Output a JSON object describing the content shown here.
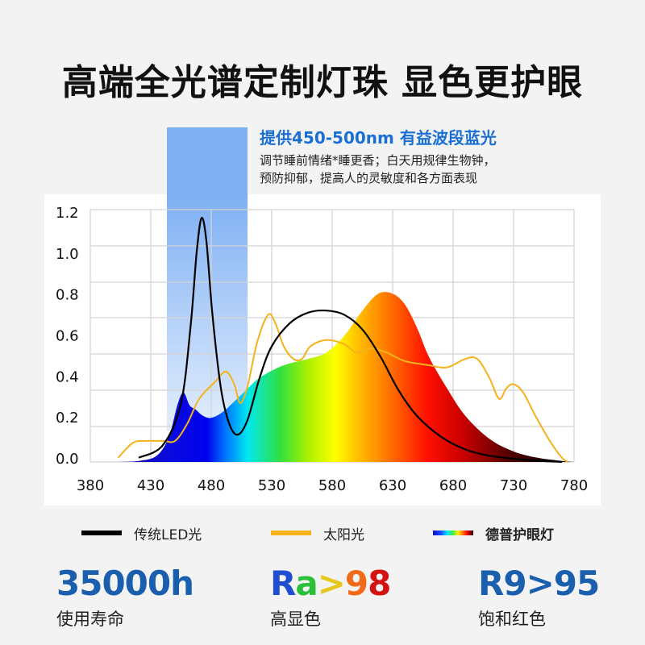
{
  "header": {
    "title": "高端全光谱定制灯珠 显色更护眼"
  },
  "callout": {
    "headline": "提供450-500nm 有益波段蓝光",
    "line1": "调节睡前情绪*睡更香；白天用规律生物钟，",
    "line2": "预防抑郁，提高人的灵敏度和各方面表现",
    "band_color": "#7fb0f4"
  },
  "legend": {
    "items": [
      {
        "label": "传统LED光",
        "color": "#000000",
        "swatch": "solid"
      },
      {
        "label": "太阳光",
        "color": "#f5b21b",
        "swatch": "solid"
      },
      {
        "label": "德普护眼灯",
        "color": "spectrum",
        "swatch": "gradient"
      }
    ]
  },
  "stats": [
    {
      "value": "35000h",
      "label": "使用寿命",
      "color": "#1a5fae"
    },
    {
      "value": "Ra>98",
      "label": "高显色",
      "color": "rainbow",
      "chars": [
        {
          "c": "R",
          "color": "#1f4fd0"
        },
        {
          "c": "a",
          "color": "#2bbf3a"
        },
        {
          "c": ">",
          "color": "#e5c81a"
        },
        {
          "c": "9",
          "color": "#f06a1a"
        },
        {
          "c": "8",
          "color": "#d31212"
        }
      ]
    },
    {
      "value": "R9>95",
      "label": "饱和红色",
      "color": "#1a5fae"
    }
  ],
  "chart_data": {
    "type": "line",
    "title": "",
    "xlabel": "",
    "ylabel": "",
    "x_ticks": [
      380,
      430,
      480,
      530,
      580,
      630,
      680,
      730,
      780
    ],
    "y_ticks": [
      "0.0",
      "0.2",
      "0.4",
      "0.6",
      "0.8",
      "1.0",
      "1.2"
    ],
    "xlim": [
      380,
      780
    ],
    "ylim": [
      0,
      1.2
    ],
    "grid": true,
    "highlight_band": {
      "from_nm": 443,
      "to_nm": 509,
      "label": "提供450-500nm 有益波段蓝光"
    },
    "series": [
      {
        "name": "传统LED光",
        "color": "#000000",
        "points": [
          [
            420,
            0.02
          ],
          [
            440,
            0.08
          ],
          [
            455,
            0.28
          ],
          [
            463,
            0.65
          ],
          [
            468,
            1.0
          ],
          [
            472,
            1.16
          ],
          [
            476,
            1.05
          ],
          [
            481,
            0.7
          ],
          [
            488,
            0.35
          ],
          [
            495,
            0.18
          ],
          [
            502,
            0.13
          ],
          [
            510,
            0.2
          ],
          [
            520,
            0.4
          ],
          [
            530,
            0.55
          ],
          [
            545,
            0.66
          ],
          [
            560,
            0.71
          ],
          [
            575,
            0.72
          ],
          [
            590,
            0.7
          ],
          [
            605,
            0.63
          ],
          [
            620,
            0.5
          ],
          [
            635,
            0.34
          ],
          [
            650,
            0.22
          ],
          [
            670,
            0.12
          ],
          [
            690,
            0.06
          ],
          [
            710,
            0.03
          ],
          [
            740,
            0.01
          ],
          [
            770,
            0.0
          ]
        ]
      },
      {
        "name": "太阳光",
        "color": "#f5b21b",
        "points": [
          [
            403,
            0.02
          ],
          [
            415,
            0.09
          ],
          [
            425,
            0.1
          ],
          [
            440,
            0.1
          ],
          [
            450,
            0.1
          ],
          [
            460,
            0.18
          ],
          [
            470,
            0.3
          ],
          [
            483,
            0.38
          ],
          [
            492,
            0.43
          ],
          [
            499,
            0.37
          ],
          [
            504,
            0.28
          ],
          [
            510,
            0.36
          ],
          [
            518,
            0.57
          ],
          [
            527,
            0.7
          ],
          [
            533,
            0.66
          ],
          [
            540,
            0.55
          ],
          [
            548,
            0.49
          ],
          [
            555,
            0.49
          ],
          [
            562,
            0.55
          ],
          [
            575,
            0.58
          ],
          [
            590,
            0.56
          ],
          [
            600,
            0.52
          ],
          [
            612,
            0.54
          ],
          [
            625,
            0.52
          ],
          [
            640,
            0.48
          ],
          [
            660,
            0.46
          ],
          [
            675,
            0.45
          ],
          [
            690,
            0.49
          ],
          [
            700,
            0.49
          ],
          [
            710,
            0.4
          ],
          [
            718,
            0.3
          ],
          [
            724,
            0.35
          ],
          [
            730,
            0.37
          ],
          [
            738,
            0.33
          ],
          [
            748,
            0.22
          ],
          [
            760,
            0.1
          ],
          [
            770,
            0.02
          ],
          [
            775,
            0.0
          ]
        ]
      },
      {
        "name": "德普护眼灯",
        "color": "spectrum-gradient",
        "fill": true,
        "points": [
          [
            400,
            0.0
          ],
          [
            420,
            0.005
          ],
          [
            435,
            0.03
          ],
          [
            445,
            0.12
          ],
          [
            452,
            0.27
          ],
          [
            457,
            0.33
          ],
          [
            462,
            0.27
          ],
          [
            467,
            0.25
          ],
          [
            473,
            0.22
          ],
          [
            480,
            0.21
          ],
          [
            490,
            0.24
          ],
          [
            505,
            0.32
          ],
          [
            520,
            0.4
          ],
          [
            540,
            0.46
          ],
          [
            560,
            0.49
          ],
          [
            575,
            0.52
          ],
          [
            590,
            0.6
          ],
          [
            605,
            0.72
          ],
          [
            618,
            0.8
          ],
          [
            630,
            0.8
          ],
          [
            640,
            0.75
          ],
          [
            650,
            0.64
          ],
          [
            660,
            0.5
          ],
          [
            675,
            0.35
          ],
          [
            690,
            0.22
          ],
          [
            710,
            0.11
          ],
          [
            730,
            0.05
          ],
          [
            750,
            0.02
          ],
          [
            770,
            0.005
          ],
          [
            780,
            0.0
          ]
        ]
      }
    ]
  }
}
